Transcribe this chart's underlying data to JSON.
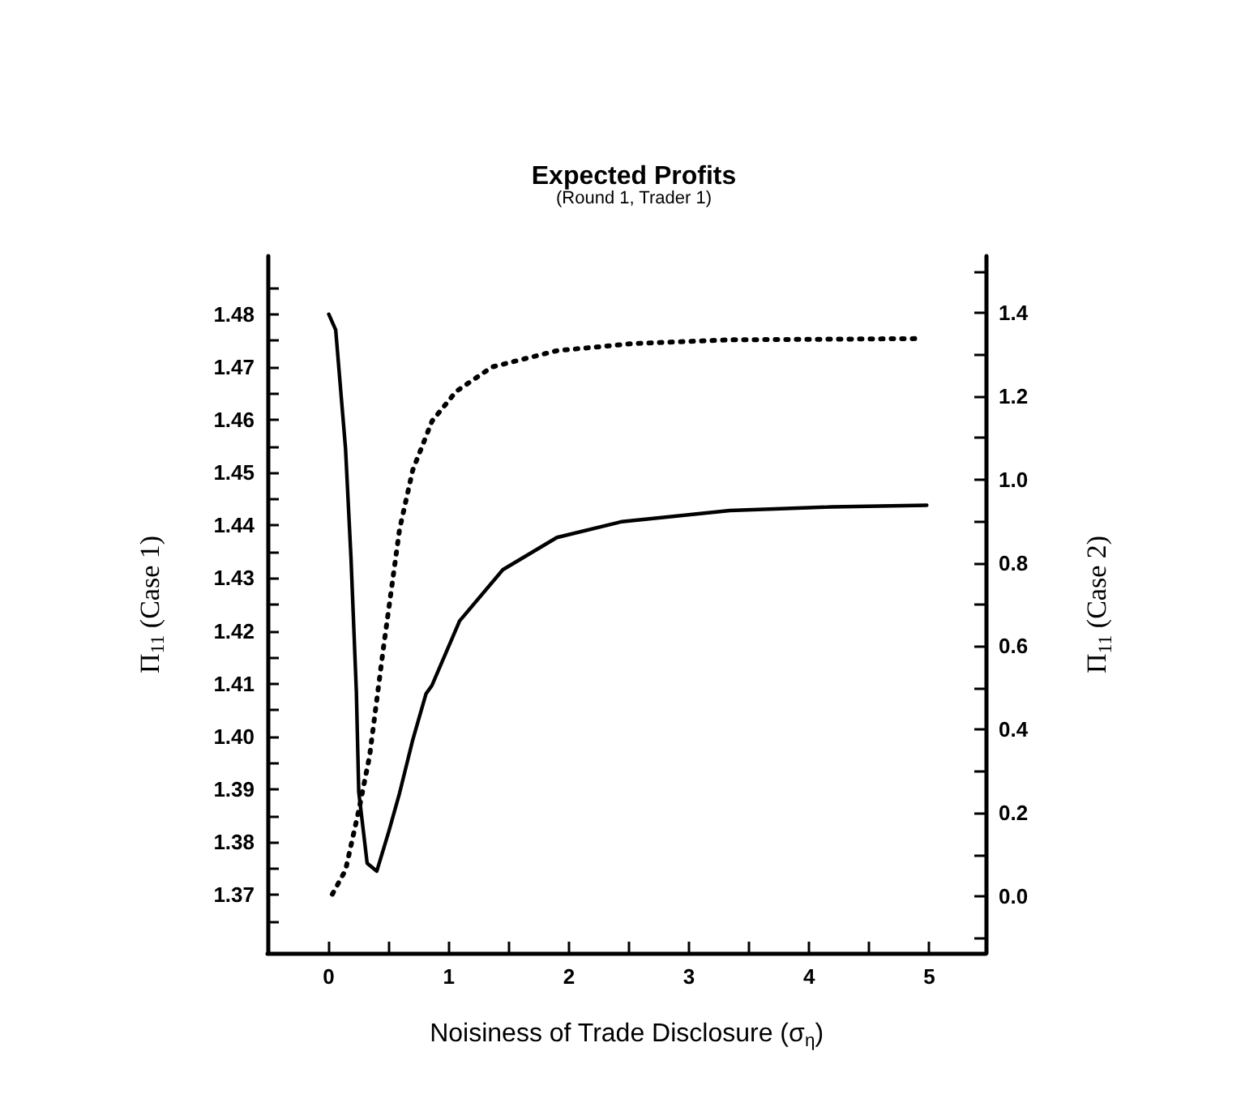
{
  "chart_data": {
    "type": "line",
    "title": "Expected Profits",
    "subtitle": "(Round 1, Trader 1)",
    "xlabel": "Noisiness of Trade Disclosure (σ$_{η}$)",
    "ylabel": "Π$_{11}$ (Case 1)",
    "y2label": "Π$_{11}$ (Case 2)",
    "series": [
      {
        "color": "#000000",
        "line_style": "solid",
        "x": [
          0,
          0.058,
          0.14,
          0.185,
          0.23,
          0.25,
          0.32,
          0.4,
          0.5,
          0.59,
          0.7,
          0.81,
          0.86,
          1.09,
          1.45,
          1.9,
          2.44,
          3.34,
          4.19,
          4.98
        ],
        "values": [
          1.48,
          1.477,
          1.4545,
          1.434,
          1.4085,
          1.3895,
          1.376,
          1.3745,
          1.382,
          1.3893,
          1.3994,
          1.4081,
          1.4097,
          1.4219,
          1.4316,
          1.4377,
          1.4407,
          1.4428,
          1.4435,
          1.4438
        ]
      },
      {
        "color": "#000000",
        "line_style": "dotted",
        "axis": "y2",
        "x": [
          0.03,
          0.14,
          0.25,
          0.34,
          0.455,
          0.59,
          0.7,
          0.86,
          1.06,
          1.36,
          1.9,
          2.53,
          3.34,
          4.9
        ],
        "values": [
          0.005,
          0.063,
          0.206,
          0.336,
          0.595,
          0.881,
          1.023,
          1.14,
          1.211,
          1.27,
          1.309,
          1.326,
          1.335,
          1.338
        ]
      }
    ],
    "xlim": [
      -0.51,
      5.47
    ],
    "xticks": [
      0,
      {
        "value": 0.5,
        "label": null
      },
      1,
      {
        "value": 1.5,
        "label": null
      },
      2,
      {
        "value": 2.5,
        "label": null
      },
      3,
      {
        "value": 3.5,
        "label": null
      },
      4,
      {
        "value": 4.5,
        "label": null
      },
      5
    ],
    "ylim": [
      1.359,
      1.491
    ],
    "yticks": [
      {
        "value": 1.365,
        "label": null
      },
      {
        "value": 1.37,
        "label": "1.37"
      },
      {
        "value": 1.375,
        "label": null
      },
      1.38,
      {
        "value": 1.385,
        "label": null
      },
      1.39,
      {
        "value": 1.395,
        "label": null
      },
      {
        "value": 1.4,
        "label": "1.40"
      },
      {
        "value": 1.405,
        "label": null
      },
      1.41,
      {
        "value": 1.415,
        "label": null
      },
      1.42,
      {
        "value": 1.425,
        "label": null
      },
      1.43,
      {
        "value": 1.435,
        "label": null
      },
      1.44,
      {
        "value": 1.445,
        "label": null
      },
      1.45,
      {
        "value": 1.455,
        "label": null
      },
      1.46,
      {
        "value": 1.465,
        "label": null
      },
      1.47,
      {
        "value": 1.475,
        "label": null
      },
      1.48,
      {
        "value": 1.485,
        "label": null
      }
    ],
    "y2lim": [
      -0.136,
      1.536
    ],
    "y2ticks": [
      {
        "value": -0.1,
        "label": null
      },
      {
        "value": 0,
        "label": "0.0"
      },
      {
        "value": 0.1,
        "label": null
      },
      0.2,
      {
        "value": 0.3,
        "label": null
      },
      0.4,
      {
        "value": 0.5,
        "label": null
      },
      0.6,
      {
        "value": 0.7,
        "label": null
      },
      0.8,
      {
        "value": 0.9,
        "label": null
      },
      {
        "value": 1,
        "label": "1.0"
      },
      {
        "value": 1.1,
        "label": null
      },
      1.2,
      {
        "value": 1.3,
        "label": null
      },
      1.4,
      {
        "value": 1.5,
        "label": null
      }
    ],
    "marker": "none"
  }
}
